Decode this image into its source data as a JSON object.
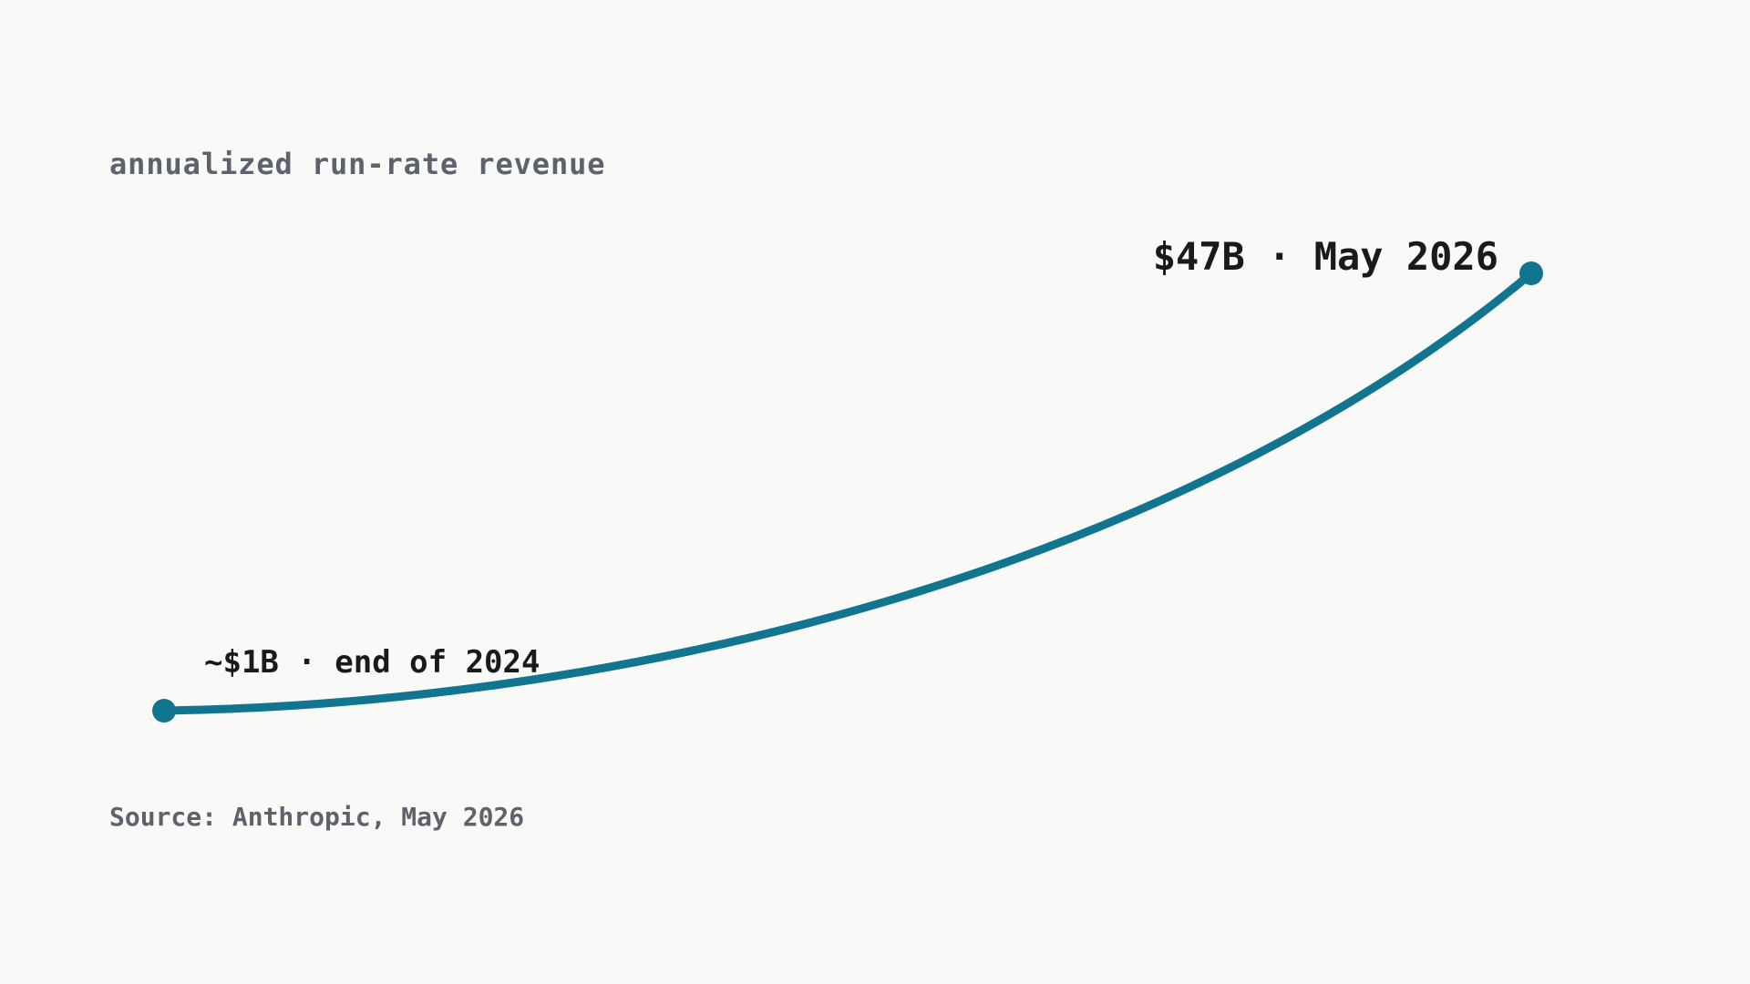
{
  "chart_data": {
    "type": "line",
    "subtitle": "annualized run-rate revenue",
    "source": "Source: Anthropic, May 2026",
    "accent_color": "#12758f",
    "x": [
      "end of 2024",
      "May 2026"
    ],
    "series": [
      {
        "values": [
          1,
          47
        ]
      }
    ],
    "annotations": [
      {
        "point": 0,
        "text": "~$1B · end of 2024"
      },
      {
        "point": 1,
        "text": "$47B · May 2026"
      }
    ],
    "grid": false,
    "axes_visible": false
  }
}
